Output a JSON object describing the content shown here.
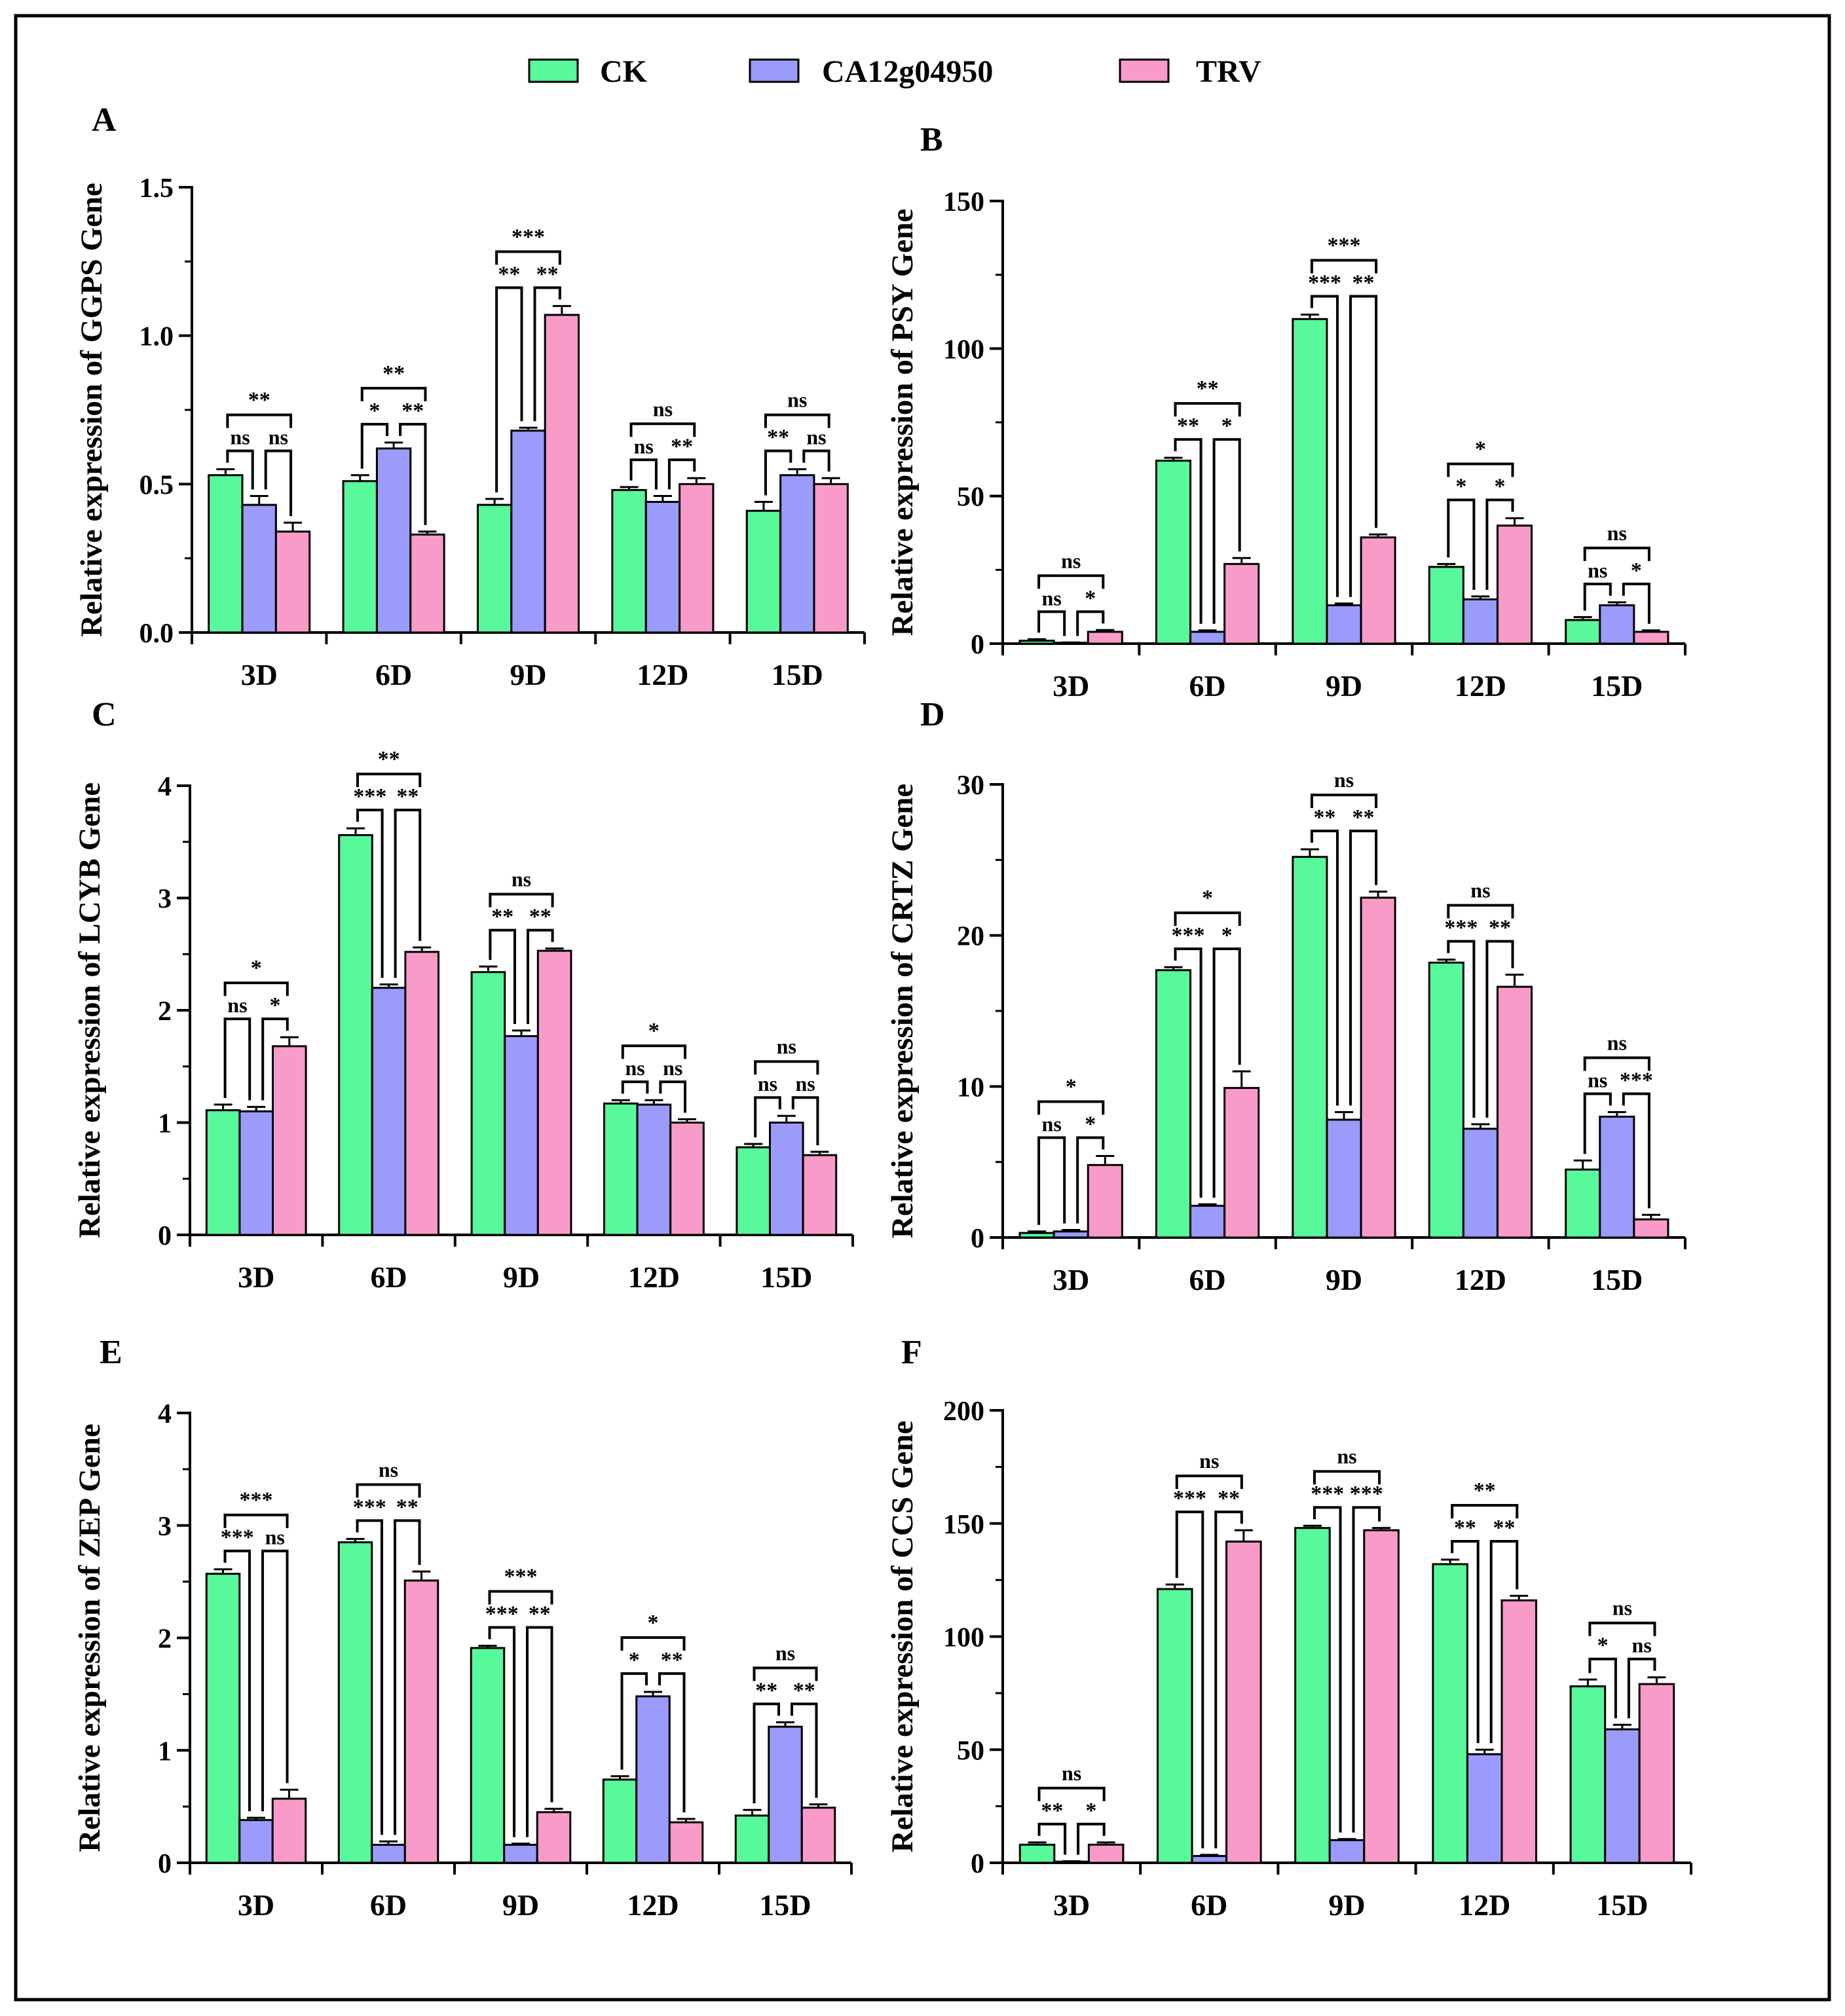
{
  "colors": {
    "ck": "#57F99B",
    "ca": "#9B9BFB",
    "trv": "#F99BC9",
    "stroke": "#000000"
  },
  "legend": {
    "labels": [
      "CK",
      "CA12g04950",
      "TRV"
    ]
  },
  "chart_data": [
    {
      "panel": "A",
      "type": "bar",
      "ylabel": "Relative expression of GGPS Gene",
      "categories": [
        "3D",
        "6D",
        "9D",
        "12D",
        "15D"
      ],
      "ylim": [
        0,
        1.5
      ],
      "yticks": [
        0.0,
        0.5,
        1.0,
        1.5
      ],
      "yticklabels": [
        "0.0",
        "0.5",
        "1.0",
        "1.5"
      ],
      "series": [
        {
          "name": "CK",
          "values": [
            0.53,
            0.51,
            0.43,
            0.48,
            0.41
          ],
          "errors": [
            0.02,
            0.02,
            0.02,
            0.01,
            0.03
          ]
        },
        {
          "name": "CA12g04950",
          "values": [
            0.43,
            0.62,
            0.68,
            0.44,
            0.53
          ],
          "errors": [
            0.03,
            0.02,
            0.01,
            0.02,
            0.02
          ]
        },
        {
          "name": "TRV",
          "values": [
            0.34,
            0.33,
            1.07,
            0.5,
            0.5
          ],
          "errors": [
            0.03,
            0.01,
            0.03,
            0.02,
            0.02
          ]
        }
      ],
      "annotations": [
        [
          "ns",
          "ns",
          "**"
        ],
        [
          "*",
          "**",
          "**"
        ],
        [
          "**",
          "**",
          "***"
        ],
        [
          "ns",
          "**",
          "ns"
        ],
        [
          "**",
          "ns",
          "ns"
        ]
      ]
    },
    {
      "panel": "B",
      "type": "bar",
      "ylabel": "Relative expression of PSY Gene",
      "categories": [
        "3D",
        "6D",
        "9D",
        "12D",
        "15D"
      ],
      "ylim": [
        0,
        150
      ],
      "yticks": [
        0,
        50,
        100,
        150
      ],
      "yticklabels": [
        "0",
        "50",
        "100",
        "150"
      ],
      "series": [
        {
          "name": "CK",
          "values": [
            1,
            62,
            110,
            26,
            8
          ],
          "errors": [
            0.5,
            1,
            1.5,
            1,
            1
          ]
        },
        {
          "name": "CA12g04950",
          "values": [
            0.3,
            4,
            13,
            15,
            13
          ],
          "errors": [
            0.1,
            0.5,
            0.6,
            1,
            1
          ]
        },
        {
          "name": "TRV",
          "values": [
            4,
            27,
            36,
            40,
            4
          ],
          "errors": [
            0.6,
            2,
            1,
            2.5,
            0.5
          ]
        }
      ],
      "annotations": [
        [
          "ns",
          "*",
          "ns"
        ],
        [
          "**",
          "*",
          "**"
        ],
        [
          "***",
          "**",
          "***"
        ],
        [
          "*",
          "*",
          "*"
        ],
        [
          "ns",
          "*",
          "ns"
        ]
      ]
    },
    {
      "panel": "C",
      "type": "bar",
      "ylabel": "Relative expression of LCYB Gene",
      "categories": [
        "3D",
        "6D",
        "9D",
        "12D",
        "15D"
      ],
      "ylim": [
        0,
        4
      ],
      "yticks": [
        0,
        1,
        2,
        3,
        4
      ],
      "yticklabels": [
        "0",
        "1",
        "2",
        "3",
        "4"
      ],
      "series": [
        {
          "name": "CK",
          "values": [
            1.11,
            3.56,
            2.34,
            1.17,
            0.78
          ],
          "errors": [
            0.05,
            0.06,
            0.05,
            0.03,
            0.03
          ]
        },
        {
          "name": "CA12g04950",
          "values": [
            1.1,
            2.2,
            1.77,
            1.16,
            1.0
          ],
          "errors": [
            0.04,
            0.03,
            0.05,
            0.04,
            0.06
          ]
        },
        {
          "name": "TRV",
          "values": [
            1.68,
            2.52,
            2.53,
            1.0,
            0.71
          ],
          "errors": [
            0.08,
            0.04,
            0.02,
            0.03,
            0.03
          ]
        }
      ],
      "annotations": [
        [
          "ns",
          "*",
          "*"
        ],
        [
          "***",
          "**",
          "**"
        ],
        [
          "**",
          "**",
          "ns"
        ],
        [
          "ns",
          "ns",
          "*"
        ],
        [
          "ns",
          "ns",
          "ns"
        ]
      ]
    },
    {
      "panel": "D",
      "type": "bar",
      "ylabel": "Relative expression of CRTZ Gene",
      "categories": [
        "3D",
        "6D",
        "9D",
        "12D",
        "15D"
      ],
      "ylim": [
        0,
        30
      ],
      "yticks": [
        0,
        10,
        20,
        30
      ],
      "yticklabels": [
        "0",
        "10",
        "20",
        "30"
      ],
      "series": [
        {
          "name": "CK",
          "values": [
            0.3,
            17.7,
            25.2,
            18.2,
            4.5
          ],
          "errors": [
            0.1,
            0.2,
            0.5,
            0.2,
            0.6
          ]
        },
        {
          "name": "CA12g04950",
          "values": [
            0.4,
            2.1,
            7.8,
            7.2,
            8.0
          ],
          "errors": [
            0.1,
            0.1,
            0.5,
            0.3,
            0.3
          ]
        },
        {
          "name": "TRV",
          "values": [
            4.8,
            9.9,
            22.5,
            16.6,
            1.2
          ],
          "errors": [
            0.6,
            1.1,
            0.4,
            0.8,
            0.3
          ]
        }
      ],
      "annotations": [
        [
          "ns",
          "*",
          "*"
        ],
        [
          "***",
          "*",
          "*"
        ],
        [
          "**",
          "**",
          "ns"
        ],
        [
          "***",
          "**",
          "ns"
        ],
        [
          "ns",
          "***",
          "ns"
        ]
      ]
    },
    {
      "panel": "E",
      "type": "bar",
      "ylabel": "Relative expression of ZEP Gene",
      "categories": [
        "3D",
        "6D",
        "9D",
        "12D",
        "15D"
      ],
      "ylim": [
        0,
        4
      ],
      "yticks": [
        0,
        1,
        2,
        3,
        4
      ],
      "yticklabels": [
        "0",
        "1",
        "2",
        "3",
        "4"
      ],
      "series": [
        {
          "name": "CK",
          "values": [
            2.57,
            2.85,
            1.91,
            0.74,
            0.42
          ],
          "errors": [
            0.04,
            0.03,
            0.02,
            0.03,
            0.05
          ]
        },
        {
          "name": "CA12g04950",
          "values": [
            0.38,
            0.16,
            0.16,
            1.48,
            1.21
          ],
          "errors": [
            0.02,
            0.03,
            0.01,
            0.04,
            0.04
          ]
        },
        {
          "name": "TRV",
          "values": [
            0.57,
            2.51,
            0.45,
            0.36,
            0.49
          ],
          "errors": [
            0.08,
            0.08,
            0.03,
            0.03,
            0.03
          ]
        }
      ],
      "annotations": [
        [
          "***",
          "ns",
          "***"
        ],
        [
          "***",
          "**",
          "ns"
        ],
        [
          "***",
          "**",
          "***"
        ],
        [
          "*",
          "**",
          "*"
        ],
        [
          "**",
          "**",
          "ns"
        ]
      ]
    },
    {
      "panel": "F",
      "type": "bar",
      "ylabel": "Relative expression of CCS Gene",
      "categories": [
        "3D",
        "6D",
        "9D",
        "12D",
        "15D"
      ],
      "ylim": [
        0,
        200
      ],
      "yticks": [
        0,
        50,
        100,
        150,
        200
      ],
      "yticklabels": [
        "0",
        "50",
        "100",
        "150",
        "200"
      ],
      "series": [
        {
          "name": "CK",
          "values": [
            8,
            121,
            148,
            132,
            78
          ],
          "errors": [
            1,
            2,
            1,
            2,
            3
          ]
        },
        {
          "name": "CA12g04950",
          "values": [
            0.5,
            3,
            10,
            48,
            59
          ],
          "errors": [
            0.2,
            0.5,
            0.5,
            2,
            2
          ]
        },
        {
          "name": "TRV",
          "values": [
            8,
            142,
            147,
            116,
            79
          ],
          "errors": [
            1,
            5,
            1,
            2,
            3
          ]
        }
      ],
      "annotations": [
        [
          "**",
          "*",
          "ns"
        ],
        [
          "***",
          "**",
          "ns"
        ],
        [
          "***",
          "***",
          "ns"
        ],
        [
          "**",
          "**",
          "**"
        ],
        [
          "*",
          "ns",
          "ns"
        ]
      ]
    }
  ]
}
